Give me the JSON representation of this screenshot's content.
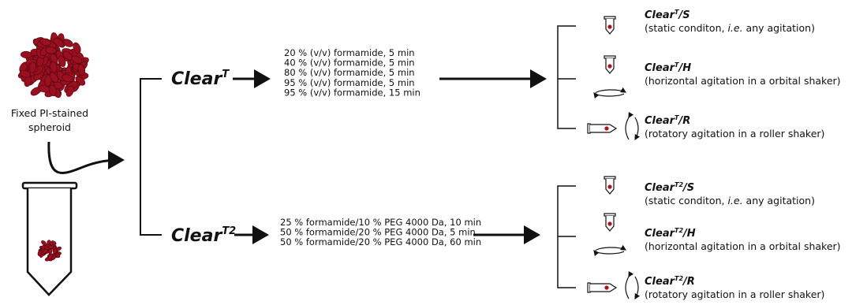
{
  "source": {
    "label_lines": [
      "Fixed PI-stained",
      "spheroid"
    ]
  },
  "protocols": [
    {
      "name": "Clear",
      "sup": "T",
      "steps": [
        "20 % (v/v) formamide, 5 min",
        "40 % (v/v) formamide, 5 min",
        "80 % (v/v) formamide, 5 min",
        "95 % (v/v) formamide, 5 min",
        "95 % (v/v) formamide, 15 min"
      ],
      "outcomes": [
        {
          "name": "Clear",
          "sup": "T",
          "suffix": "/S",
          "description": {
            "before": "(static conditon, ",
            "italic": "i.e.",
            "after": " any agitation)"
          }
        },
        {
          "name": "Clear",
          "sup": "T",
          "suffix": "/H",
          "description": {
            "before": "(horizontal agitation in a orbital shaker)"
          }
        },
        {
          "name": "Clear",
          "sup": "T",
          "suffix": "/R",
          "description": {
            "before": "(rotatory agitation in a roller shaker)"
          }
        }
      ]
    },
    {
      "name": "Clear",
      "sup": "T2",
      "steps": [
        "25 % formamide/10 % PEG 4000 Da, 10 min",
        "50 % formamide/20 % PEG 4000 Da, 5 min",
        "50 % formamide/20 % PEG 4000 Da, 60 min"
      ],
      "outcomes": [
        {
          "name": "Clear",
          "sup": "T2",
          "suffix": "/S",
          "description": {
            "before": "(static conditon, ",
            "italic": "i.e.",
            "after": " any agitation)"
          }
        },
        {
          "name": "Clear",
          "sup": "T2",
          "suffix": "/H",
          "description": {
            "before": "(horizontal agitation in a orbital shaker)"
          }
        },
        {
          "name": "Clear",
          "sup": "T2",
          "suffix": "/R",
          "description": {
            "before": "(rotatory agitation in a roller shaker)"
          }
        }
      ]
    }
  ]
}
